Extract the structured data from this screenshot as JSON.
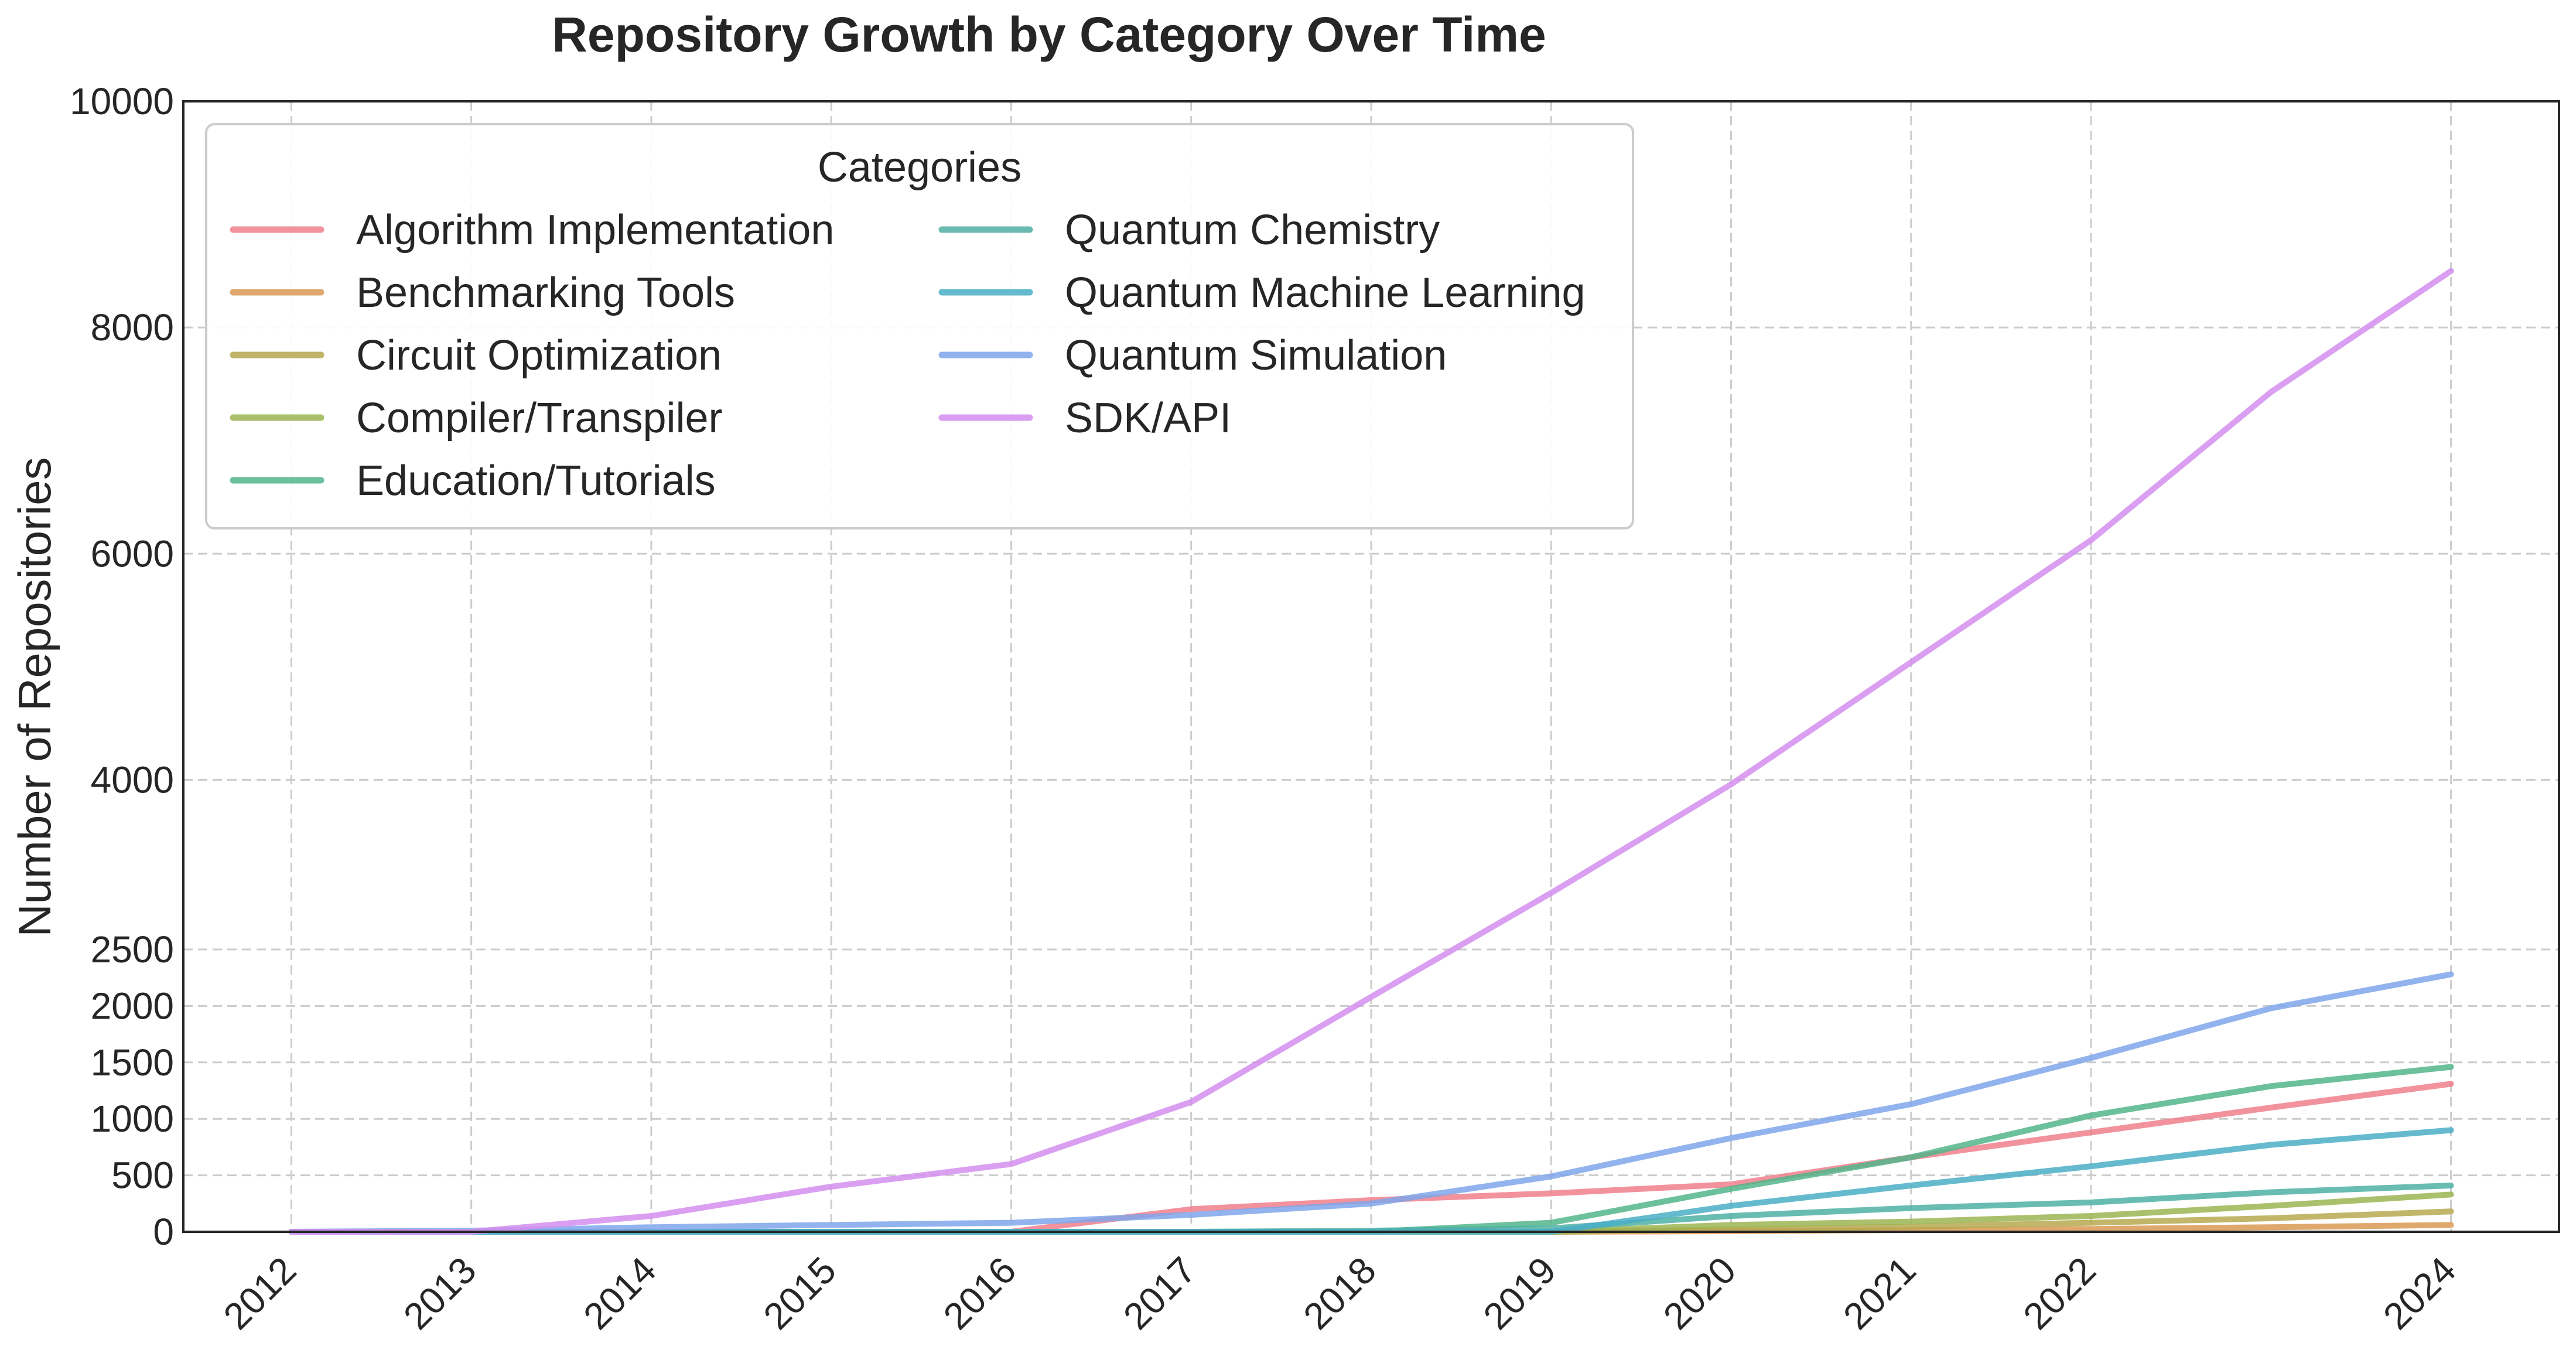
{
  "chart_data": {
    "type": "line",
    "title": "Repository Growth by Category Over Time",
    "xlabel": "",
    "ylabel": "Number of Repositories",
    "x": [
      2012,
      2013,
      2014,
      2015,
      2016,
      2017,
      2018,
      2019,
      2020,
      2021,
      2022,
      2023,
      2024
    ],
    "xticks": [
      2012,
      2013,
      2014,
      2015,
      2016,
      2017,
      2018,
      2019,
      2020,
      2021,
      2022,
      2024
    ],
    "xlim": [
      2011.4,
      2024.6
    ],
    "ylim": [
      0,
      10000
    ],
    "yticks": [
      0,
      500,
      1000,
      1500,
      2000,
      2500,
      4000,
      6000,
      8000,
      10000
    ],
    "y_scale": "piecewise: 0–2500 expanded, 2500–10000 linear",
    "grid": true,
    "legend": {
      "title": "Categories",
      "position": "top-left",
      "columns": 2
    },
    "series": [
      {
        "name": "Algorithm Implementation",
        "color": "#f07f8c",
        "values": [
          0,
          0,
          0,
          0,
          0,
          200,
          280,
          340,
          420,
          660,
          880,
          1100,
          1310
        ]
      },
      {
        "name": "Benchmarking Tools",
        "color": "#d99a55",
        "values": [
          0,
          0,
          0,
          0,
          0,
          0,
          0,
          0,
          5,
          15,
          25,
          40,
          60
        ]
      },
      {
        "name": "Circuit Optimization",
        "color": "#b6a950",
        "values": [
          0,
          0,
          0,
          0,
          0,
          0,
          0,
          0,
          20,
          45,
          80,
          120,
          180
        ]
      },
      {
        "name": "Compiler/Transpiler",
        "color": "#9cb552",
        "values": [
          0,
          0,
          0,
          0,
          0,
          0,
          0,
          0,
          60,
          90,
          140,
          230,
          330
        ]
      },
      {
        "name": "Education/Tutorials",
        "color": "#52b58a",
        "values": [
          0,
          0,
          0,
          0,
          0,
          0,
          0,
          80,
          380,
          660,
          1030,
          1290,
          1460
        ]
      },
      {
        "name": "Quantum Chemistry",
        "color": "#4fb0a5",
        "values": [
          0,
          0,
          0,
          0,
          0,
          0,
          10,
          30,
          140,
          210,
          260,
          350,
          410
        ]
      },
      {
        "name": "Quantum Machine Learning",
        "color": "#4aaec6",
        "values": [
          0,
          0,
          0,
          0,
          0,
          0,
          0,
          0,
          230,
          410,
          580,
          770,
          900
        ]
      },
      {
        "name": "Quantum Simulation",
        "color": "#7fa6ea",
        "values": [
          0,
          10,
          40,
          60,
          80,
          150,
          250,
          490,
          830,
          1130,
          1540,
          1980,
          2280
        ]
      },
      {
        "name": "SDK/API",
        "color": "#d38eee",
        "values": [
          0,
          0,
          140,
          400,
          600,
          1150,
          2080,
          3000,
          3960,
          5040,
          6120,
          7430,
          8500
        ]
      }
    ]
  }
}
